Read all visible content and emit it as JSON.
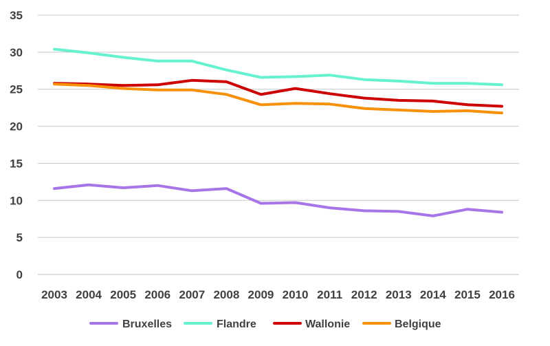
{
  "chart_data": {
    "type": "line",
    "title": "",
    "xlabel": "",
    "ylabel": "",
    "ylim": [
      0,
      35
    ],
    "yticks": [
      0,
      5,
      10,
      15,
      20,
      25,
      30,
      35
    ],
    "grid": true,
    "legend_position": "bottom",
    "categories": [
      "2003",
      "2004",
      "2005",
      "2006",
      "2007",
      "2008",
      "2009",
      "2010",
      "2011",
      "2012",
      "2013",
      "2014",
      "2015",
      "2016"
    ],
    "series": [
      {
        "name": "Bruxelles",
        "color": "#A875E8",
        "values": [
          11.6,
          12.1,
          11.7,
          12.0,
          11.3,
          11.6,
          9.6,
          9.7,
          9.0,
          8.6,
          8.5,
          7.9,
          8.8,
          8.4
        ]
      },
      {
        "name": "Flandre",
        "color": "#66F2D0",
        "values": [
          30.4,
          29.9,
          29.3,
          28.8,
          28.8,
          27.6,
          26.6,
          26.7,
          26.9,
          26.3,
          26.1,
          25.8,
          25.8,
          25.6
        ]
      },
      {
        "name": "Wallonie",
        "color": "#CC0000",
        "values": [
          25.8,
          25.7,
          25.5,
          25.6,
          26.2,
          26.0,
          24.3,
          25.1,
          24.4,
          23.8,
          23.5,
          23.4,
          22.9,
          22.7
        ]
      },
      {
        "name": "Belgique",
        "color": "#F7900A",
        "values": [
          25.7,
          25.5,
          25.1,
          24.9,
          24.9,
          24.3,
          22.9,
          23.1,
          23.0,
          22.4,
          22.2,
          22.0,
          22.1,
          21.8
        ]
      }
    ]
  }
}
